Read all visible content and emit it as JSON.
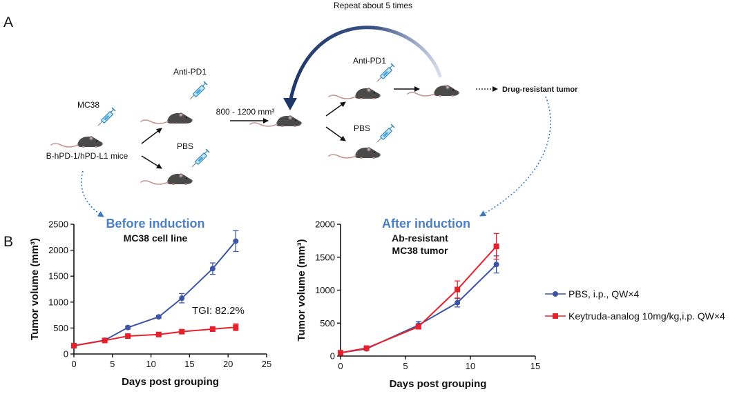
{
  "panel_a": {
    "panel_label": "A",
    "repeat_label": "Repeat about 5 times",
    "start_drug_label": "MC38",
    "mouse_strain_label": "B-hPD-1/hPD-L1 mice",
    "arm1_anti_pd1_label": "Anti-PD1",
    "arm1_pbs_label": "PBS",
    "volume_threshold_label": "800 - 1200 mm³",
    "arm2_anti_pd1_label": "Anti-PD1",
    "arm2_pbs_label": "PBS",
    "outcome_label": "Drug-resistant tumor"
  },
  "panel_b": {
    "panel_label": "B",
    "left_title": "Before induction",
    "left_subtitle": "MC38 cell line",
    "right_title": "After induction",
    "right_subtitle_line1": "Ab-resistant",
    "right_subtitle_line2": "MC38 tumor",
    "tgi_annotation": "TGI: 82.2%"
  },
  "legend": {
    "items": [
      {
        "label": "PBS, i.p., QW×4",
        "color": "#3c55a5",
        "marker": "circle"
      },
      {
        "label": "Keytruda-analog 10mg/kg,i.p. QW×4",
        "color": "#e8202a",
        "marker": "square"
      }
    ]
  },
  "colors": {
    "pbs": "#3c55a5",
    "keytruda": "#e8202a",
    "heading": "#4a7fc1",
    "arc": "#1f3768"
  },
  "chart_data": [
    {
      "type": "line",
      "title": "Before induction",
      "xlabel": "Days post grouping",
      "ylabel": "Tumor volume (mm³)",
      "xlim": [
        0,
        25
      ],
      "ylim": [
        0,
        2500
      ],
      "xticks": [
        0,
        5,
        10,
        15,
        20,
        25
      ],
      "yticks": [
        0,
        500,
        1000,
        1500,
        2000,
        2500
      ],
      "series": [
        {
          "name": "PBS, i.p., QW×4",
          "x": [
            0,
            4,
            7,
            11,
            14,
            18,
            21
          ],
          "y": [
            160,
            265,
            510,
            715,
            1075,
            1645,
            2175
          ],
          "err": [
            0,
            25,
            30,
            25,
            90,
            110,
            200
          ]
        },
        {
          "name": "Keytruda-analog 10mg/kg,i.p. QW×4",
          "x": [
            0,
            4,
            7,
            11,
            14,
            18,
            21
          ],
          "y": [
            160,
            260,
            345,
            375,
            430,
            480,
            515
          ],
          "err": [
            0,
            20,
            20,
            25,
            30,
            45,
            65
          ]
        }
      ]
    },
    {
      "type": "line",
      "title": "After induction",
      "xlabel": "Days post grouping",
      "ylabel": "Tumor volume (mm³)",
      "xlim": [
        0,
        15
      ],
      "ylim": [
        0,
        2000
      ],
      "xticks": [
        0,
        5,
        10,
        15
      ],
      "yticks": [
        0,
        500,
        1000,
        1500,
        2000
      ],
      "series": [
        {
          "name": "PBS, i.p., QW×4",
          "x": [
            0,
            2,
            6,
            9,
            12
          ],
          "y": [
            50,
            110,
            470,
            810,
            1390
          ],
          "err": [
            10,
            20,
            55,
            65,
            130
          ]
        },
        {
          "name": "Keytruda-analog 10mg/kg,i.p. QW×4",
          "x": [
            0,
            2,
            6,
            9,
            12
          ],
          "y": [
            50,
            120,
            445,
            1010,
            1665
          ],
          "err": [
            10,
            20,
            35,
            130,
            195
          ]
        }
      ]
    }
  ]
}
